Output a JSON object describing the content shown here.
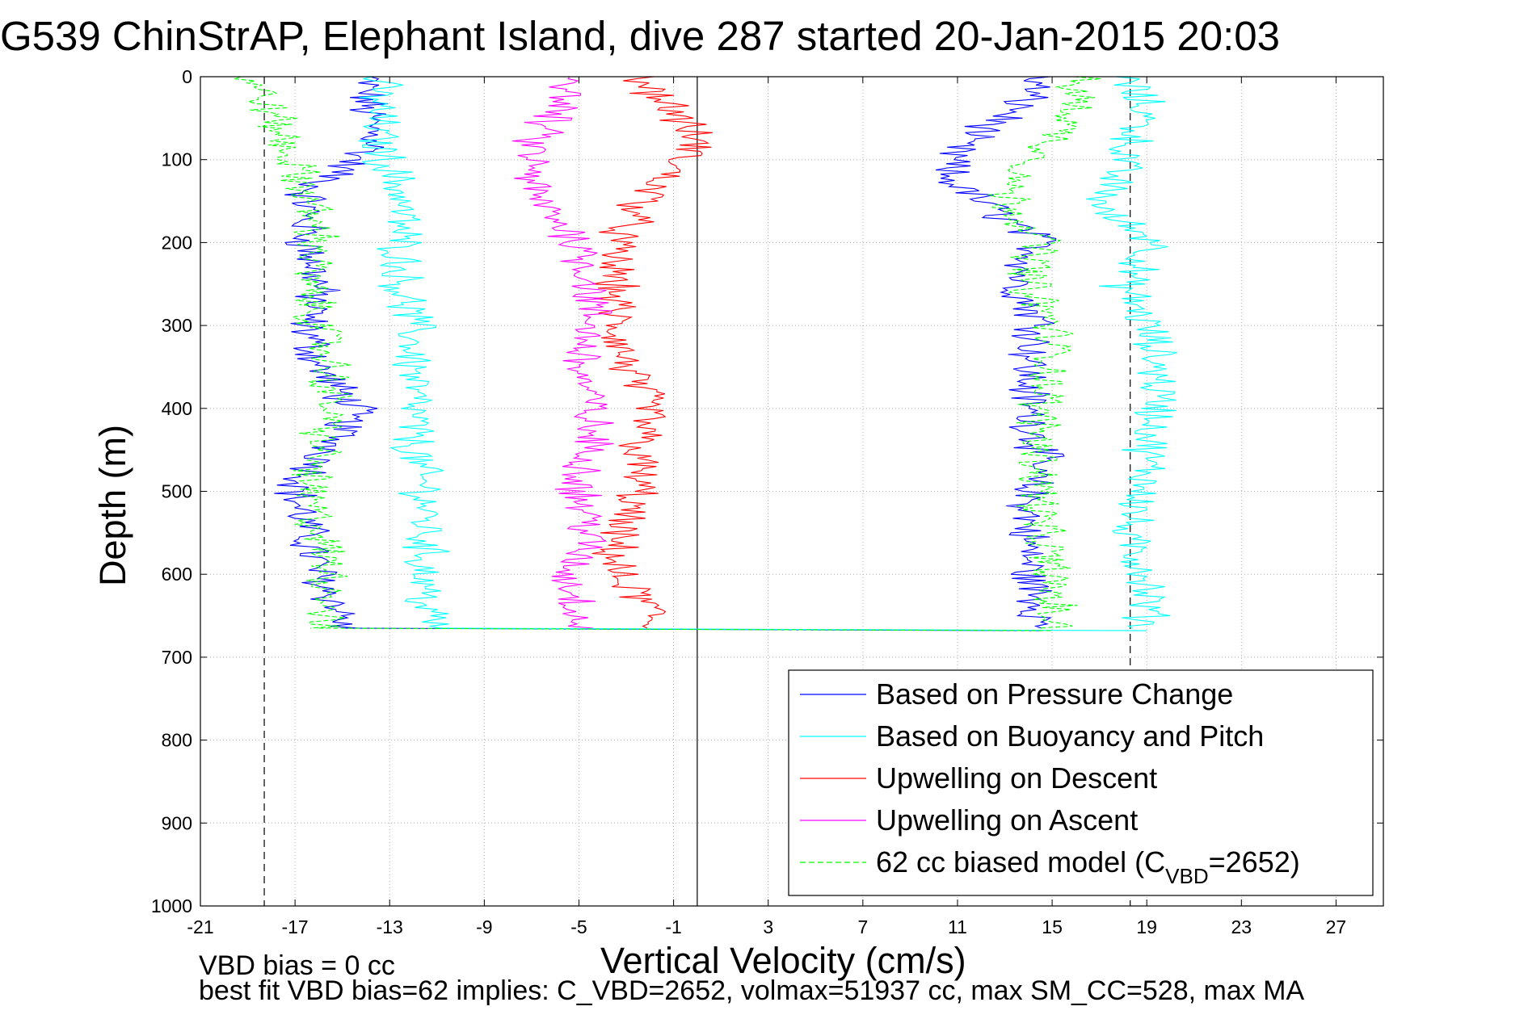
{
  "chart_data": {
    "type": "line",
    "title": "G539 ChinStrAP, Elephant Island, dive 287 started 20-Jan-2015 20:03",
    "xlabel": "Vertical Velocity (cm/s)",
    "ylabel": "Depth (m)",
    "xlim": [
      -21,
      29
    ],
    "ylim": [
      0,
      1000
    ],
    "y_reversed": true,
    "xticks": [
      -21,
      -17,
      -13,
      -9,
      -5,
      -1,
      3,
      7,
      11,
      15,
      19,
      23,
      27
    ],
    "xtick_labels": [
      "-21",
      "-17",
      "-13",
      "-9",
      "-5",
      "-1",
      "3",
      "7",
      "11",
      "15",
      "19",
      "23",
      "27"
    ],
    "yticks": [
      0,
      100,
      200,
      300,
      400,
      500,
      600,
      700,
      800,
      900,
      1000
    ],
    "ytick_labels": [
      "0",
      "100",
      "200",
      "300",
      "400",
      "500",
      "600",
      "700",
      "800",
      "900",
      "1000"
    ],
    "grid": true,
    "legend_position": "bottom-right",
    "reference_lines": [
      {
        "x": -18.3,
        "style": "dashed",
        "color": "#000000"
      },
      {
        "x": 0,
        "style": "solid",
        "color": "#000000"
      },
      {
        "x": 18.3,
        "style": "dashed",
        "color": "#000000"
      }
    ],
    "series": [
      {
        "name": "Based on Pressure Change",
        "color": "#0000ff",
        "style": "solid",
        "descent": {
          "depth": [
            0,
            40,
            80,
            140,
            200,
            250,
            300,
            350,
            400,
            450,
            500,
            550,
            600,
            650,
            665
          ],
          "velocity": [
            -14,
            -14,
            -13.5,
            -16.5,
            -16.5,
            -16,
            -16.5,
            -16,
            -14.5,
            -15.5,
            -17,
            -16.5,
            -16,
            -15,
            -15
          ]
        },
        "ascent": {
          "depth": [
            0,
            40,
            80,
            120,
            140,
            180,
            200,
            250,
            300,
            350,
            400,
            450,
            500,
            550,
            600,
            640,
            665
          ],
          "velocity": [
            14.5,
            13.5,
            11,
            10.5,
            11.5,
            13.5,
            14.5,
            13.5,
            14.5,
            14,
            14,
            14.5,
            14,
            14,
            14,
            14.5,
            14.5
          ]
        }
      },
      {
        "name": "Based on Buoyancy and Pitch",
        "color": "#00ffff",
        "style": "solid",
        "descent": {
          "depth": [
            0,
            40,
            80,
            140,
            200,
            250,
            300,
            350,
            400,
            450,
            500,
            550,
            600,
            640,
            665
          ],
          "velocity": [
            -13.5,
            -13.5,
            -13.5,
            -12.5,
            -12.5,
            -12.5,
            -12,
            -12,
            -12,
            -12,
            -11.5,
            -11.5,
            -11.5,
            -11.5,
            -11
          ]
        },
        "ascent": {
          "depth": [
            0,
            40,
            100,
            160,
            200,
            250,
            300,
            350,
            400,
            450,
            500,
            550,
            600,
            640,
            665
          ],
          "velocity": [
            18,
            19,
            18,
            17,
            19.5,
            18,
            19,
            19.5,
            19.5,
            19,
            19,
            18,
            19,
            19,
            19
          ]
        }
      },
      {
        "name": "Upwelling on Descent",
        "color": "#ff0000",
        "style": "solid",
        "depth": [
          0,
          40,
          80,
          140,
          200,
          250,
          300,
          350,
          400,
          450,
          500,
          550,
          600,
          640,
          665
        ],
        "velocity": [
          -2.5,
          -1,
          0,
          -2,
          -3.5,
          -3.5,
          -3.5,
          -3,
          -2,
          -2.5,
          -2.5,
          -3.5,
          -3.5,
          -2,
          -2
        ]
      },
      {
        "name": "Upwelling on Ascent",
        "color": "#ff00ff",
        "style": "solid",
        "depth": [
          0,
          40,
          80,
          140,
          200,
          250,
          300,
          350,
          400,
          450,
          500,
          550,
          600,
          640,
          665
        ],
        "velocity": [
          -5,
          -6,
          -7,
          -7,
          -5,
          -4.5,
          -4.5,
          -5,
          -4.5,
          -4.5,
          -5,
          -4.5,
          -5.5,
          -5,
          -5
        ]
      },
      {
        "name": "62 cc biased model (C_VBD=2652)",
        "legend_label": "62 cc biased model (C",
        "legend_sub": "VBD",
        "legend_tail": "=2652)",
        "color": "#00ff00",
        "style": "dashed",
        "descent": {
          "depth": [
            0,
            40,
            80,
            140,
            200,
            250,
            300,
            350,
            400,
            450,
            500,
            550,
            600,
            640,
            665
          ],
          "velocity": [
            -19,
            -18,
            -17.5,
            -16.5,
            -16,
            -16.5,
            -16,
            -15.5,
            -15.5,
            -16,
            -16.5,
            -16,
            -15.5,
            -15.5,
            -16
          ]
        },
        "ascent": {
          "depth": [
            0,
            40,
            80,
            140,
            200,
            250,
            300,
            350,
            400,
            450,
            500,
            550,
            600,
            640,
            665
          ],
          "velocity": [
            16,
            16,
            15,
            13,
            14.5,
            14,
            15,
            15,
            14.5,
            14.5,
            14.5,
            14.5,
            15,
            15,
            15
          ]
        }
      }
    ],
    "annotations": [
      "VBD bias = 0 cc",
      "best fit VBD bias=62 implies: C_VBD=2652, volmax=51937 cc, max SM_CC=528, max MA"
    ]
  }
}
